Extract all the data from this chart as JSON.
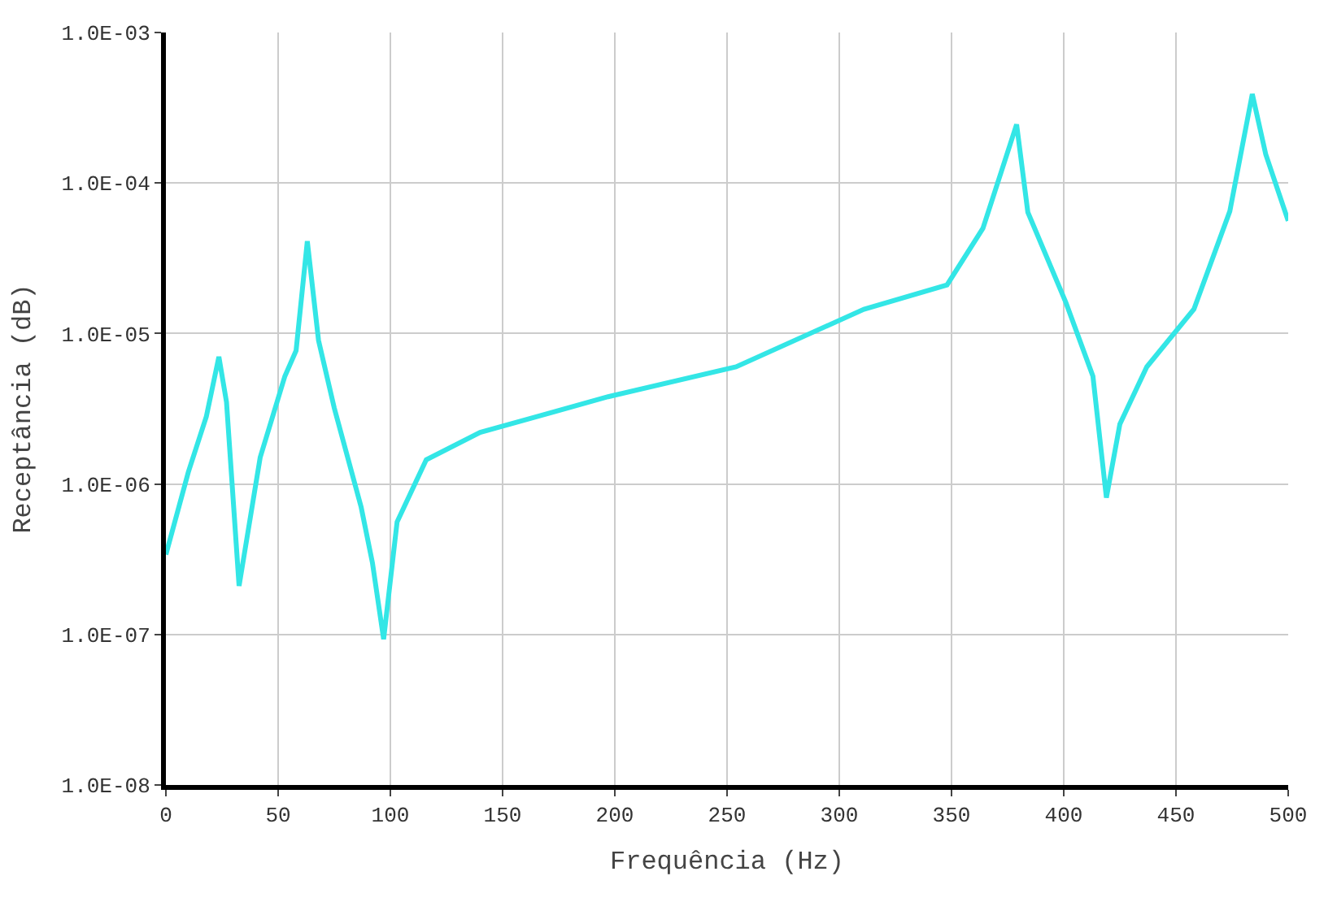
{
  "chart_data": {
    "type": "line",
    "xlabel": "Frequência (Hz)",
    "ylabel": "Receptância (dB)",
    "log": "y",
    "grid": true,
    "legend": false,
    "marker": "none",
    "line_style": "solid",
    "xlim": [
      0,
      500
    ],
    "xticks": [
      0,
      50,
      100,
      150,
      200,
      250,
      300,
      350,
      400,
      450,
      500
    ],
    "ylim": [
      1e-08,
      0.001
    ],
    "yticks": [
      {
        "value": 1e-08,
        "label": "1.0E-08"
      },
      {
        "value": 1e-07,
        "label": "1.0E-07"
      },
      {
        "value": 1e-06,
        "label": "1.0E-06"
      },
      {
        "value": 1e-05,
        "label": "1.0E-05"
      },
      {
        "value": 0.0001,
        "label": "1.0E-04"
      },
      {
        "value": 0.001,
        "label": "1.0E-03"
      }
    ],
    "x": [
      0,
      10,
      18,
      23.6,
      27,
      32.6,
      42,
      53,
      58,
      63,
      68,
      75,
      87,
      92,
      97,
      103,
      116,
      140,
      197,
      254,
      311,
      348,
      364,
      379,
      384,
      401,
      413,
      419,
      425,
      437,
      458,
      474,
      484,
      490,
      500
    ],
    "series": [
      {
        "color": "#33e6e6",
        "values": [
          3.4e-07,
          1.2e-06,
          2.8e-06,
          7e-06,
          3.5e-06,
          2.1e-07,
          1.5e-06,
          5.2e-06,
          7.7e-06,
          4.1e-05,
          9e-06,
          3.2e-06,
          7e-07,
          3e-07,
          9.3e-08,
          5.6e-07,
          1.45e-06,
          2.2e-06,
          3.8e-06,
          6e-06,
          1.45e-05,
          2.1e-05,
          5e-05,
          0.000245,
          6.4e-05,
          1.6e-05,
          5.2e-06,
          8.1e-07,
          2.5e-06,
          6e-06,
          1.45e-05,
          6.5e-05,
          0.00039,
          0.000155,
          5.6e-05
        ]
      }
    ]
  }
}
